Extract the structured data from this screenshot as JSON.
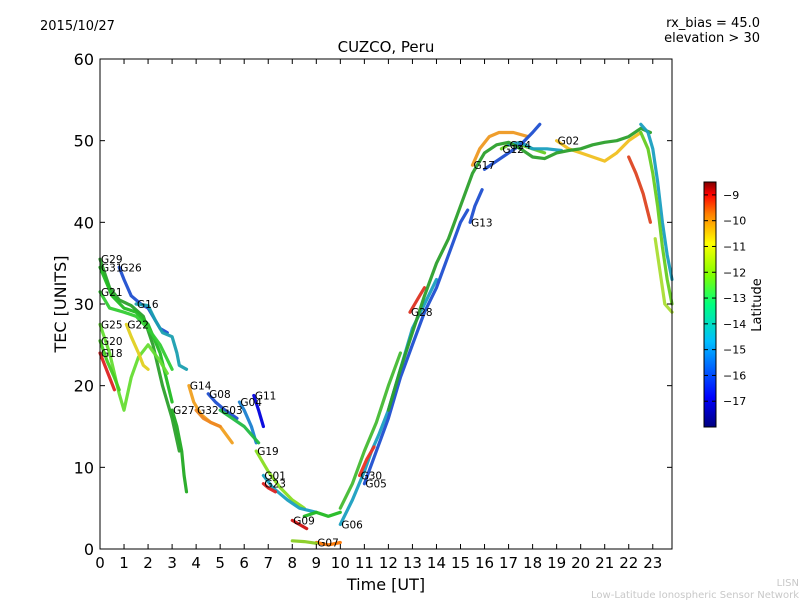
{
  "header": {
    "date": "2015/10/27",
    "bias": "rx_bias = 45.0",
    "elevation": "elevation > 30"
  },
  "footer": {
    "line1": "LISN",
    "line2": "Low-Latitude Ionospheric Sensor Network"
  },
  "chart_data": {
    "type": "line",
    "title": "CUZCO, Peru",
    "xlabel": "Time [UT]",
    "ylabel": "TEC [UNITS]",
    "xlim": [
      0,
      23.8
    ],
    "ylim": [
      0,
      60
    ],
    "xticks": [
      0,
      1,
      2,
      3,
      4,
      5,
      6,
      7,
      8,
      9,
      10,
      11,
      12,
      13,
      14,
      15,
      16,
      17,
      18,
      19,
      20,
      21,
      22,
      23
    ],
    "yticks": [
      0,
      10,
      20,
      30,
      40,
      50,
      60
    ],
    "grid": false,
    "colorbar": {
      "label": "Latitude",
      "min": -18,
      "max": -8.5,
      "ticks": [
        -17,
        -16,
        -15,
        -14,
        -13,
        -12,
        -11,
        -10,
        -9
      ],
      "colormap": [
        "#00007f",
        "#0000ff",
        "#007fff",
        "#00ffff",
        "#7fff7f",
        "#ffff00",
        "#ff7f00",
        "#ff0000",
        "#7f0000"
      ]
    },
    "series": [
      {
        "name": "G29",
        "color": "#2ca02c",
        "points": [
          [
            0,
            35.5
          ],
          [
            0.4,
            32
          ],
          [
            0.8,
            30.5
          ],
          [
            1.3,
            29.8
          ],
          [
            1.8,
            28.5
          ],
          [
            2.2,
            25
          ],
          [
            2.6,
            20
          ],
          [
            3,
            16
          ],
          [
            3.3,
            12
          ]
        ]
      },
      {
        "name": "G31",
        "color": "#22bb22",
        "points": [
          [
            0,
            34.5
          ],
          [
            0.5,
            31
          ],
          [
            1,
            29.5
          ],
          [
            1.5,
            29
          ],
          [
            2,
            27.5
          ],
          [
            2.5,
            24
          ],
          [
            3,
            18
          ]
        ]
      },
      {
        "name": "G26",
        "color": "#1f4fd0",
        "points": [
          [
            0.8,
            34.5
          ],
          [
            1,
            33
          ],
          [
            1.3,
            31
          ],
          [
            1.7,
            30
          ],
          [
            2,
            29.5
          ],
          [
            2.5,
            27
          ],
          [
            2.8,
            26.5
          ]
        ]
      },
      {
        "name": "G21",
        "color": "#33cc33",
        "points": [
          [
            0,
            31.5
          ],
          [
            0.4,
            29.5
          ],
          [
            1,
            29
          ],
          [
            1.5,
            28.5
          ],
          [
            2,
            27
          ],
          [
            2.5,
            25
          ],
          [
            3,
            22
          ]
        ]
      },
      {
        "name": "G25",
        "color": "#66dd33",
        "points": [
          [
            0,
            27.5
          ],
          [
            0.4,
            24
          ],
          [
            0.8,
            19
          ],
          [
            1,
            17
          ],
          [
            1.3,
            21
          ],
          [
            1.6,
            23.5
          ],
          [
            2,
            25
          ],
          [
            2.5,
            23
          ],
          [
            2.8,
            21.5
          ]
        ]
      },
      {
        "name": "G22",
        "color": "#e0d020",
        "points": [
          [
            1.1,
            27.5
          ],
          [
            1.3,
            26
          ],
          [
            1.6,
            24
          ],
          [
            1.8,
            22.5
          ],
          [
            2,
            22
          ]
        ]
      },
      {
        "name": "G16",
        "color": "#1a9fb0",
        "points": [
          [
            1.5,
            30
          ],
          [
            2,
            29.8
          ],
          [
            2.3,
            28
          ],
          [
            2.6,
            26.5
          ],
          [
            3,
            26
          ],
          [
            3.2,
            24
          ],
          [
            3.3,
            22.5
          ],
          [
            3.6,
            22
          ]
        ]
      },
      {
        "name": "G20",
        "color": "#44cc22",
        "points": [
          [
            0,
            25.5
          ],
          [
            0.3,
            23
          ],
          [
            0.6,
            21
          ],
          [
            0.8,
            19.5
          ]
        ]
      },
      {
        "name": "G18",
        "color": "#dd2222",
        "points": [
          [
            0,
            24
          ],
          [
            0.2,
            22.5
          ],
          [
            0.4,
            21
          ],
          [
            0.6,
            19.5
          ]
        ]
      },
      {
        "name": "G14",
        "color": "#f0a020",
        "points": [
          [
            3.7,
            20
          ],
          [
            3.9,
            18
          ],
          [
            4.2,
            16.5
          ],
          [
            4.6,
            15.5
          ],
          [
            5,
            15
          ],
          [
            5.5,
            13
          ]
        ]
      },
      {
        "name": "G08",
        "color": "#1f4fd0",
        "points": [
          [
            4.5,
            19
          ],
          [
            4.8,
            18
          ],
          [
            5.2,
            17
          ],
          [
            5.7,
            16
          ]
        ]
      },
      {
        "name": "G04",
        "color": "#1a7fd0",
        "points": [
          [
            5.8,
            18
          ],
          [
            6,
            17
          ],
          [
            6.3,
            15
          ],
          [
            6.5,
            13
          ]
        ]
      },
      {
        "name": "G11",
        "color": "#0000dd",
        "points": [
          [
            6.4,
            18.8
          ],
          [
            6.6,
            17
          ],
          [
            6.8,
            15
          ]
        ]
      },
      {
        "name": "G32",
        "color": "#ee8822",
        "points": [
          [
            4,
            17
          ],
          [
            4.3,
            16
          ],
          [
            4.6,
            15.5
          ],
          [
            5,
            15
          ]
        ]
      },
      {
        "name": "G03",
        "color": "#22bb44",
        "points": [
          [
            5,
            17
          ],
          [
            5.5,
            16
          ],
          [
            6,
            15
          ],
          [
            6.3,
            14
          ],
          [
            6.6,
            13
          ]
        ]
      },
      {
        "name": "G27",
        "color": "#22aa22",
        "points": [
          [
            3,
            17
          ],
          [
            3.2,
            15
          ],
          [
            3.4,
            12
          ],
          [
            3.5,
            9
          ],
          [
            3.6,
            7
          ]
        ]
      },
      {
        "name": "G19",
        "color": "#88dd22",
        "points": [
          [
            6.5,
            12
          ],
          [
            7,
            9.5
          ],
          [
            7.5,
            7.5
          ],
          [
            8,
            6
          ],
          [
            8.5,
            5
          ]
        ]
      },
      {
        "name": "G01",
        "color": "#1a9fc0",
        "points": [
          [
            6.8,
            9
          ],
          [
            7.2,
            7.5
          ],
          [
            7.8,
            6
          ],
          [
            8.3,
            5
          ],
          [
            9,
            4.5
          ]
        ]
      },
      {
        "name": "G23",
        "color": "#dd2222",
        "points": [
          [
            6.8,
            8
          ],
          [
            7,
            7.5
          ],
          [
            7.3,
            7
          ]
        ]
      },
      {
        "name": "G09",
        "color": "#cc1111",
        "points": [
          [
            8,
            3.5
          ],
          [
            8.3,
            3
          ],
          [
            8.6,
            2.5
          ]
        ]
      },
      {
        "name": "G07",
        "color": "#ff7700",
        "points": [
          [
            9,
            0.8
          ],
          [
            9.5,
            0.5
          ],
          [
            10,
            0.8
          ]
        ]
      },
      {
        "name": "G06",
        "color": "#1a9fc0",
        "points": [
          [
            10,
            3
          ],
          [
            10.5,
            6
          ],
          [
            11,
            9.5
          ],
          [
            11.3,
            12
          ],
          [
            11.6,
            14
          ],
          [
            12,
            17
          ],
          [
            12.5,
            22
          ],
          [
            13,
            27
          ],
          [
            13.5,
            30
          ],
          [
            14,
            33
          ]
        ]
      },
      {
        "name": "G30",
        "color": "#ee3322",
        "points": [
          [
            10.8,
            9
          ],
          [
            11.1,
            11
          ],
          [
            11.4,
            12.5
          ]
        ]
      },
      {
        "name": "G28",
        "color": "#dd3322",
        "points": [
          [
            12.9,
            29
          ],
          [
            13.1,
            30
          ],
          [
            13.3,
            31
          ],
          [
            13.5,
            32
          ]
        ]
      },
      {
        "name": "G05",
        "color": "#1f4fd0",
        "points": [
          [
            11,
            8
          ],
          [
            11.5,
            12
          ],
          [
            12,
            16
          ],
          [
            12.5,
            21
          ],
          [
            13,
            25
          ],
          [
            13.5,
            29
          ],
          [
            14,
            32
          ],
          [
            14.5,
            36
          ],
          [
            15,
            40
          ],
          [
            15.3,
            41.5
          ]
        ]
      },
      {
        "name": "G13",
        "color": "#1f4fd0",
        "points": [
          [
            15.4,
            40
          ],
          [
            15.6,
            42
          ],
          [
            15.9,
            44
          ]
        ]
      },
      {
        "name": "G17",
        "color": "#ee9922",
        "points": [
          [
            15.5,
            47
          ],
          [
            15.8,
            49
          ],
          [
            16.2,
            50.5
          ],
          [
            16.6,
            51
          ],
          [
            17.2,
            51
          ],
          [
            17.8,
            50.5
          ]
        ]
      },
      {
        "name": "G12",
        "color": "#66cc22",
        "points": [
          [
            16.7,
            49
          ],
          [
            17,
            49.5
          ],
          [
            17.5,
            49.5
          ],
          [
            18,
            49
          ],
          [
            18.5,
            48.5
          ]
        ]
      },
      {
        "name": "G24",
        "color": "#1a9fc0",
        "points": [
          [
            17,
            49.5
          ],
          [
            17.5,
            49.8
          ],
          [
            18,
            49
          ],
          [
            18.6,
            49
          ],
          [
            19.2,
            48.8
          ]
        ]
      },
      {
        "name": "G02",
        "color": "#f0c020",
        "points": [
          [
            19,
            50
          ],
          [
            19.5,
            49
          ],
          [
            20,
            48.5
          ],
          [
            20.5,
            48
          ],
          [
            21,
            47.5
          ],
          [
            21.5,
            48.5
          ],
          [
            22,
            50
          ],
          [
            22.5,
            51
          ]
        ]
      },
      {
        "name": "",
        "color": "#1f4fd0",
        "points": [
          [
            16,
            46.5
          ],
          [
            16.5,
            47.5
          ],
          [
            17,
            48.5
          ],
          [
            17.5,
            49.5
          ],
          [
            18,
            51
          ],
          [
            18.3,
            52
          ]
        ]
      },
      {
        "name": "",
        "color": "#2ca02c",
        "points": [
          [
            12,
            17
          ],
          [
            12.5,
            22
          ],
          [
            13,
            26.5
          ],
          [
            13.5,
            31
          ],
          [
            14,
            35
          ],
          [
            14.5,
            38
          ],
          [
            15,
            42
          ],
          [
            15.5,
            46
          ],
          [
            16,
            48.5
          ],
          [
            16.5,
            49.5
          ],
          [
            17,
            49.8
          ],
          [
            17.5,
            49
          ],
          [
            18,
            48
          ],
          [
            18.5,
            47.8
          ],
          [
            19,
            48.5
          ],
          [
            19.5,
            48.8
          ],
          [
            20,
            49
          ],
          [
            20.5,
            49.5
          ],
          [
            21,
            49.8
          ],
          [
            21.5,
            50
          ],
          [
            22,
            50.5
          ],
          [
            22.5,
            51.5
          ],
          [
            22.9,
            51
          ]
        ]
      },
      {
        "name": "",
        "color": "#44bb33",
        "points": [
          [
            10,
            5
          ],
          [
            10.5,
            8
          ],
          [
            11,
            12
          ],
          [
            11.5,
            15.5
          ],
          [
            12,
            20
          ],
          [
            12.5,
            24
          ]
        ]
      },
      {
        "name": "",
        "color": "#1a9fc0",
        "points": [
          [
            22.5,
            52
          ],
          [
            22.8,
            51
          ],
          [
            23,
            49
          ],
          [
            23.2,
            45
          ],
          [
            23.4,
            40
          ],
          [
            23.6,
            36
          ],
          [
            23.8,
            33
          ]
        ]
      },
      {
        "name": "",
        "color": "#66cc22",
        "points": [
          [
            22.5,
            51
          ],
          [
            22.8,
            49
          ],
          [
            23,
            46
          ],
          [
            23.2,
            42
          ],
          [
            23.4,
            37
          ],
          [
            23.6,
            33
          ],
          [
            23.8,
            30
          ]
        ]
      },
      {
        "name": "",
        "color": "#dd4422",
        "points": [
          [
            22,
            48
          ],
          [
            22.3,
            46
          ],
          [
            22.6,
            43.5
          ],
          [
            22.9,
            40
          ]
        ]
      },
      {
        "name": "",
        "color": "#aadd33",
        "points": [
          [
            23.1,
            38
          ],
          [
            23.3,
            34
          ],
          [
            23.5,
            30
          ],
          [
            23.8,
            29
          ]
        ]
      },
      {
        "name": "",
        "color": "#22bb22",
        "points": [
          [
            8.5,
            4
          ],
          [
            9,
            4.5
          ],
          [
            9.5,
            4
          ],
          [
            10,
            4.5
          ]
        ]
      },
      {
        "name": "",
        "color": "#88cc22",
        "points": [
          [
            8,
            1
          ],
          [
            8.5,
            0.9
          ],
          [
            9,
            0.7
          ]
        ]
      }
    ]
  }
}
